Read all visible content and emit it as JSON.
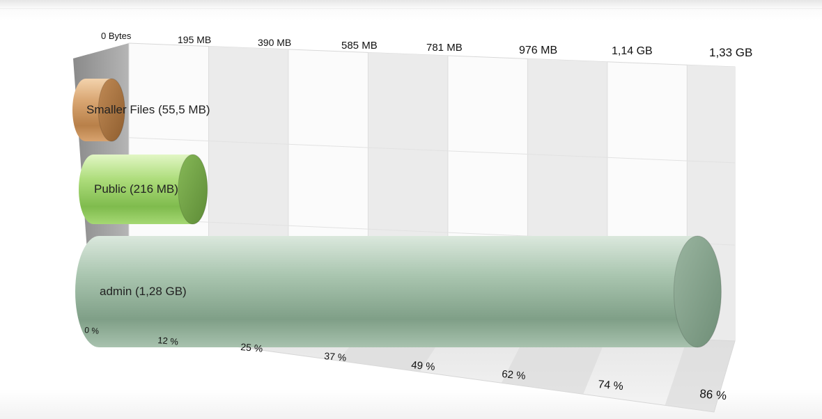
{
  "chart_data": {
    "type": "bar",
    "orientation": "horizontal",
    "style": "3d-cylinder",
    "categories": [
      "Smaller Files",
      "Public",
      "admin"
    ],
    "values_mb": [
      55.5,
      216,
      1310.72
    ],
    "bar_labels": [
      "Smaller Files (55,5 MB)",
      "Public (216 MB)",
      "admin (1,28 GB)"
    ],
    "bar_colors": [
      "#c8955f",
      "#9fd16a",
      "#9fbaa6"
    ],
    "size_axis": {
      "position": "top",
      "ticks": [
        "0 Bytes",
        "195 MB",
        "390 MB",
        "585 MB",
        "781 MB",
        "976 MB",
        "1,14 GB",
        "1,33 GB"
      ]
    },
    "percent_axis": {
      "position": "bottom",
      "ticks": [
        "0 %",
        "12 %",
        "25 %",
        "37 %",
        "49 %",
        "62 %",
        "74 %",
        "86 %"
      ]
    },
    "xlim_mb": [
      0,
      1362
    ],
    "grid": true,
    "legend": "none"
  }
}
